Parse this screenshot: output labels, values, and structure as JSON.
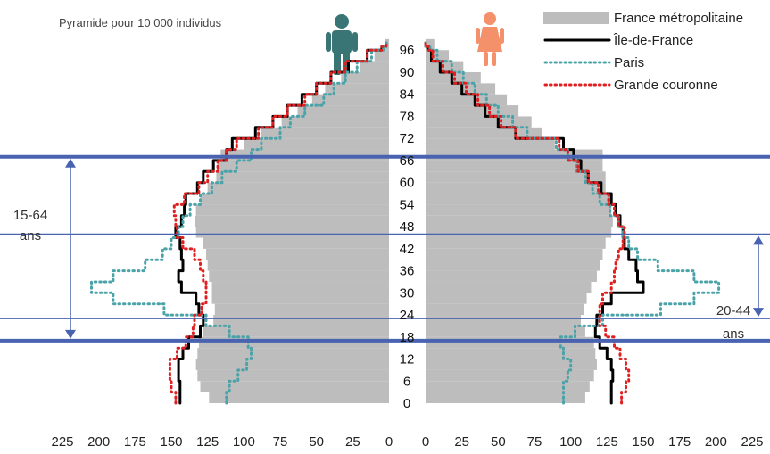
{
  "chart_data": {
    "type": "population-pyramid",
    "subtitle": "Pyramide pour 10 000 individus",
    "left_group": "Hommes",
    "right_group": "Femmes",
    "x_ticks_left": [
      225,
      200,
      175,
      150,
      125,
      100,
      75,
      50,
      25,
      0
    ],
    "x_ticks_right": [
      0,
      25,
      50,
      75,
      100,
      125,
      150,
      175,
      200,
      225
    ],
    "xlim": [
      0,
      225
    ],
    "age_ticks": [
      0,
      6,
      12,
      18,
      24,
      30,
      36,
      42,
      48,
      54,
      60,
      66,
      72,
      78,
      84,
      90,
      96
    ],
    "age_range": [
      0,
      98
    ],
    "reference_lines": [
      {
        "age": 17,
        "style": "thick"
      },
      {
        "age": 23,
        "style": "thin"
      },
      {
        "age": 46,
        "style": "thin"
      },
      {
        "age": 67,
        "style": "thick"
      }
    ],
    "annotations": [
      {
        "label_lines": [
          "15-64",
          "ans"
        ],
        "side": "left"
      },
      {
        "label_lines": [
          "20-44",
          "ans"
        ],
        "side": "right"
      }
    ],
    "legend": [
      {
        "name": "France métropolitaine",
        "style": "bar",
        "color": "#bdbdbd"
      },
      {
        "name": "Île-de-France",
        "style": "solid",
        "color": "#000000"
      },
      {
        "name": "Paris",
        "style": "dotted",
        "color": "#4aa3a8"
      },
      {
        "name": "Grande couronne",
        "style": "dotted",
        "color": "#e02020"
      }
    ],
    "series": [
      {
        "name": "France métropolitaine",
        "kind": "bars",
        "ages": [
          0,
          3,
          6,
          9,
          12,
          15,
          18,
          21,
          24,
          27,
          30,
          33,
          36,
          39,
          42,
          45,
          48,
          51,
          54,
          57,
          60,
          63,
          66,
          69,
          72,
          75,
          78,
          81,
          84,
          87,
          90,
          93,
          96
        ],
        "male": [
          124,
          130,
          132,
          133,
          132,
          131,
          128,
          121,
          120,
          122,
          122,
          124,
          125,
          126,
          128,
          133,
          134,
          133,
          130,
          125,
          119,
          118,
          116,
          100,
          88,
          74,
          63,
          53,
          44,
          33,
          20,
          10,
          3
        ],
        "female": [
          110,
          113,
          116,
          118,
          117,
          116,
          110,
          107,
          109,
          111,
          114,
          118,
          120,
          122,
          124,
          128,
          129,
          128,
          127,
          124,
          124,
          122,
          122,
          89,
          80,
          73,
          64,
          56,
          48,
          38,
          26,
          16,
          6
        ]
      },
      {
        "name": "Île-de-France",
        "kind": "line",
        "ages": [
          0,
          3,
          6,
          9,
          12,
          15,
          18,
          21,
          24,
          27,
          30,
          33,
          36,
          39,
          42,
          45,
          48,
          51,
          54,
          57,
          60,
          63,
          66,
          69,
          72,
          75,
          78,
          81,
          84,
          87,
          90,
          93,
          96,
          97
        ],
        "male": [
          144,
          144,
          145,
          145,
          142,
          138,
          130,
          128,
          131,
          133,
          143,
          145,
          142,
          143,
          144,
          147,
          143,
          141,
          140,
          132,
          128,
          121,
          112,
          108,
          92,
          80,
          70,
          60,
          50,
          40,
          28,
          15,
          5,
          2
        ],
        "female": [
          128,
          128,
          129,
          128,
          125,
          120,
          117,
          118,
          122,
          128,
          150,
          146,
          145,
          140,
          137,
          136,
          134,
          131,
          128,
          121,
          112,
          107,
          102,
          95,
          62,
          50,
          41,
          34,
          25,
          18,
          10,
          4,
          2,
          0
        ]
      },
      {
        "name": "Paris",
        "kind": "line",
        "ages": [
          0,
          3,
          6,
          9,
          12,
          15,
          18,
          21,
          24,
          27,
          30,
          33,
          36,
          39,
          42,
          45,
          48,
          51,
          54,
          57,
          60,
          63,
          66,
          69,
          72,
          75,
          78,
          81,
          84,
          87,
          90,
          93,
          96,
          97
        ],
        "male": [
          112,
          110,
          104,
          98,
          95,
          97,
          110,
          126,
          155,
          190,
          205,
          190,
          168,
          156,
          150,
          145,
          142,
          137,
          130,
          122,
          115,
          105,
          95,
          88,
          75,
          68,
          58,
          45,
          38,
          30,
          22,
          12,
          4,
          2
        ],
        "female": [
          95,
          95,
          98,
          100,
          95,
          93,
          103,
          122,
          162,
          185,
          202,
          185,
          160,
          146,
          140,
          136,
          133,
          127,
          120,
          115,
          110,
          104,
          98,
          90,
          70,
          60,
          50,
          42,
          34,
          26,
          18,
          8,
          3,
          0
        ]
      },
      {
        "name": "Grande couronne",
        "kind": "line",
        "ages": [
          0,
          3,
          6,
          9,
          12,
          15,
          18,
          21,
          24,
          27,
          30,
          33,
          36,
          39,
          42,
          45,
          48,
          51,
          54,
          57,
          60,
          63,
          66,
          69,
          72,
          75,
          78,
          81,
          84,
          87,
          90,
          93,
          96,
          97
        ],
        "male": [
          147,
          150,
          151,
          151,
          146,
          140,
          135,
          134,
          129,
          126,
          126,
          128,
          130,
          134,
          142,
          146,
          147,
          148,
          141,
          131,
          125,
          118,
          112,
          105,
          90,
          80,
          70,
          58,
          50,
          40,
          30,
          15,
          5,
          2
        ],
        "female": [
          135,
          138,
          140,
          138,
          134,
          130,
          124,
          120,
          120,
          122,
          128,
          130,
          131,
          133,
          136,
          137,
          133,
          130,
          126,
          119,
          112,
          105,
          98,
          92,
          62,
          52,
          44,
          36,
          28,
          20,
          12,
          5,
          2,
          0
        ]
      }
    ]
  }
}
